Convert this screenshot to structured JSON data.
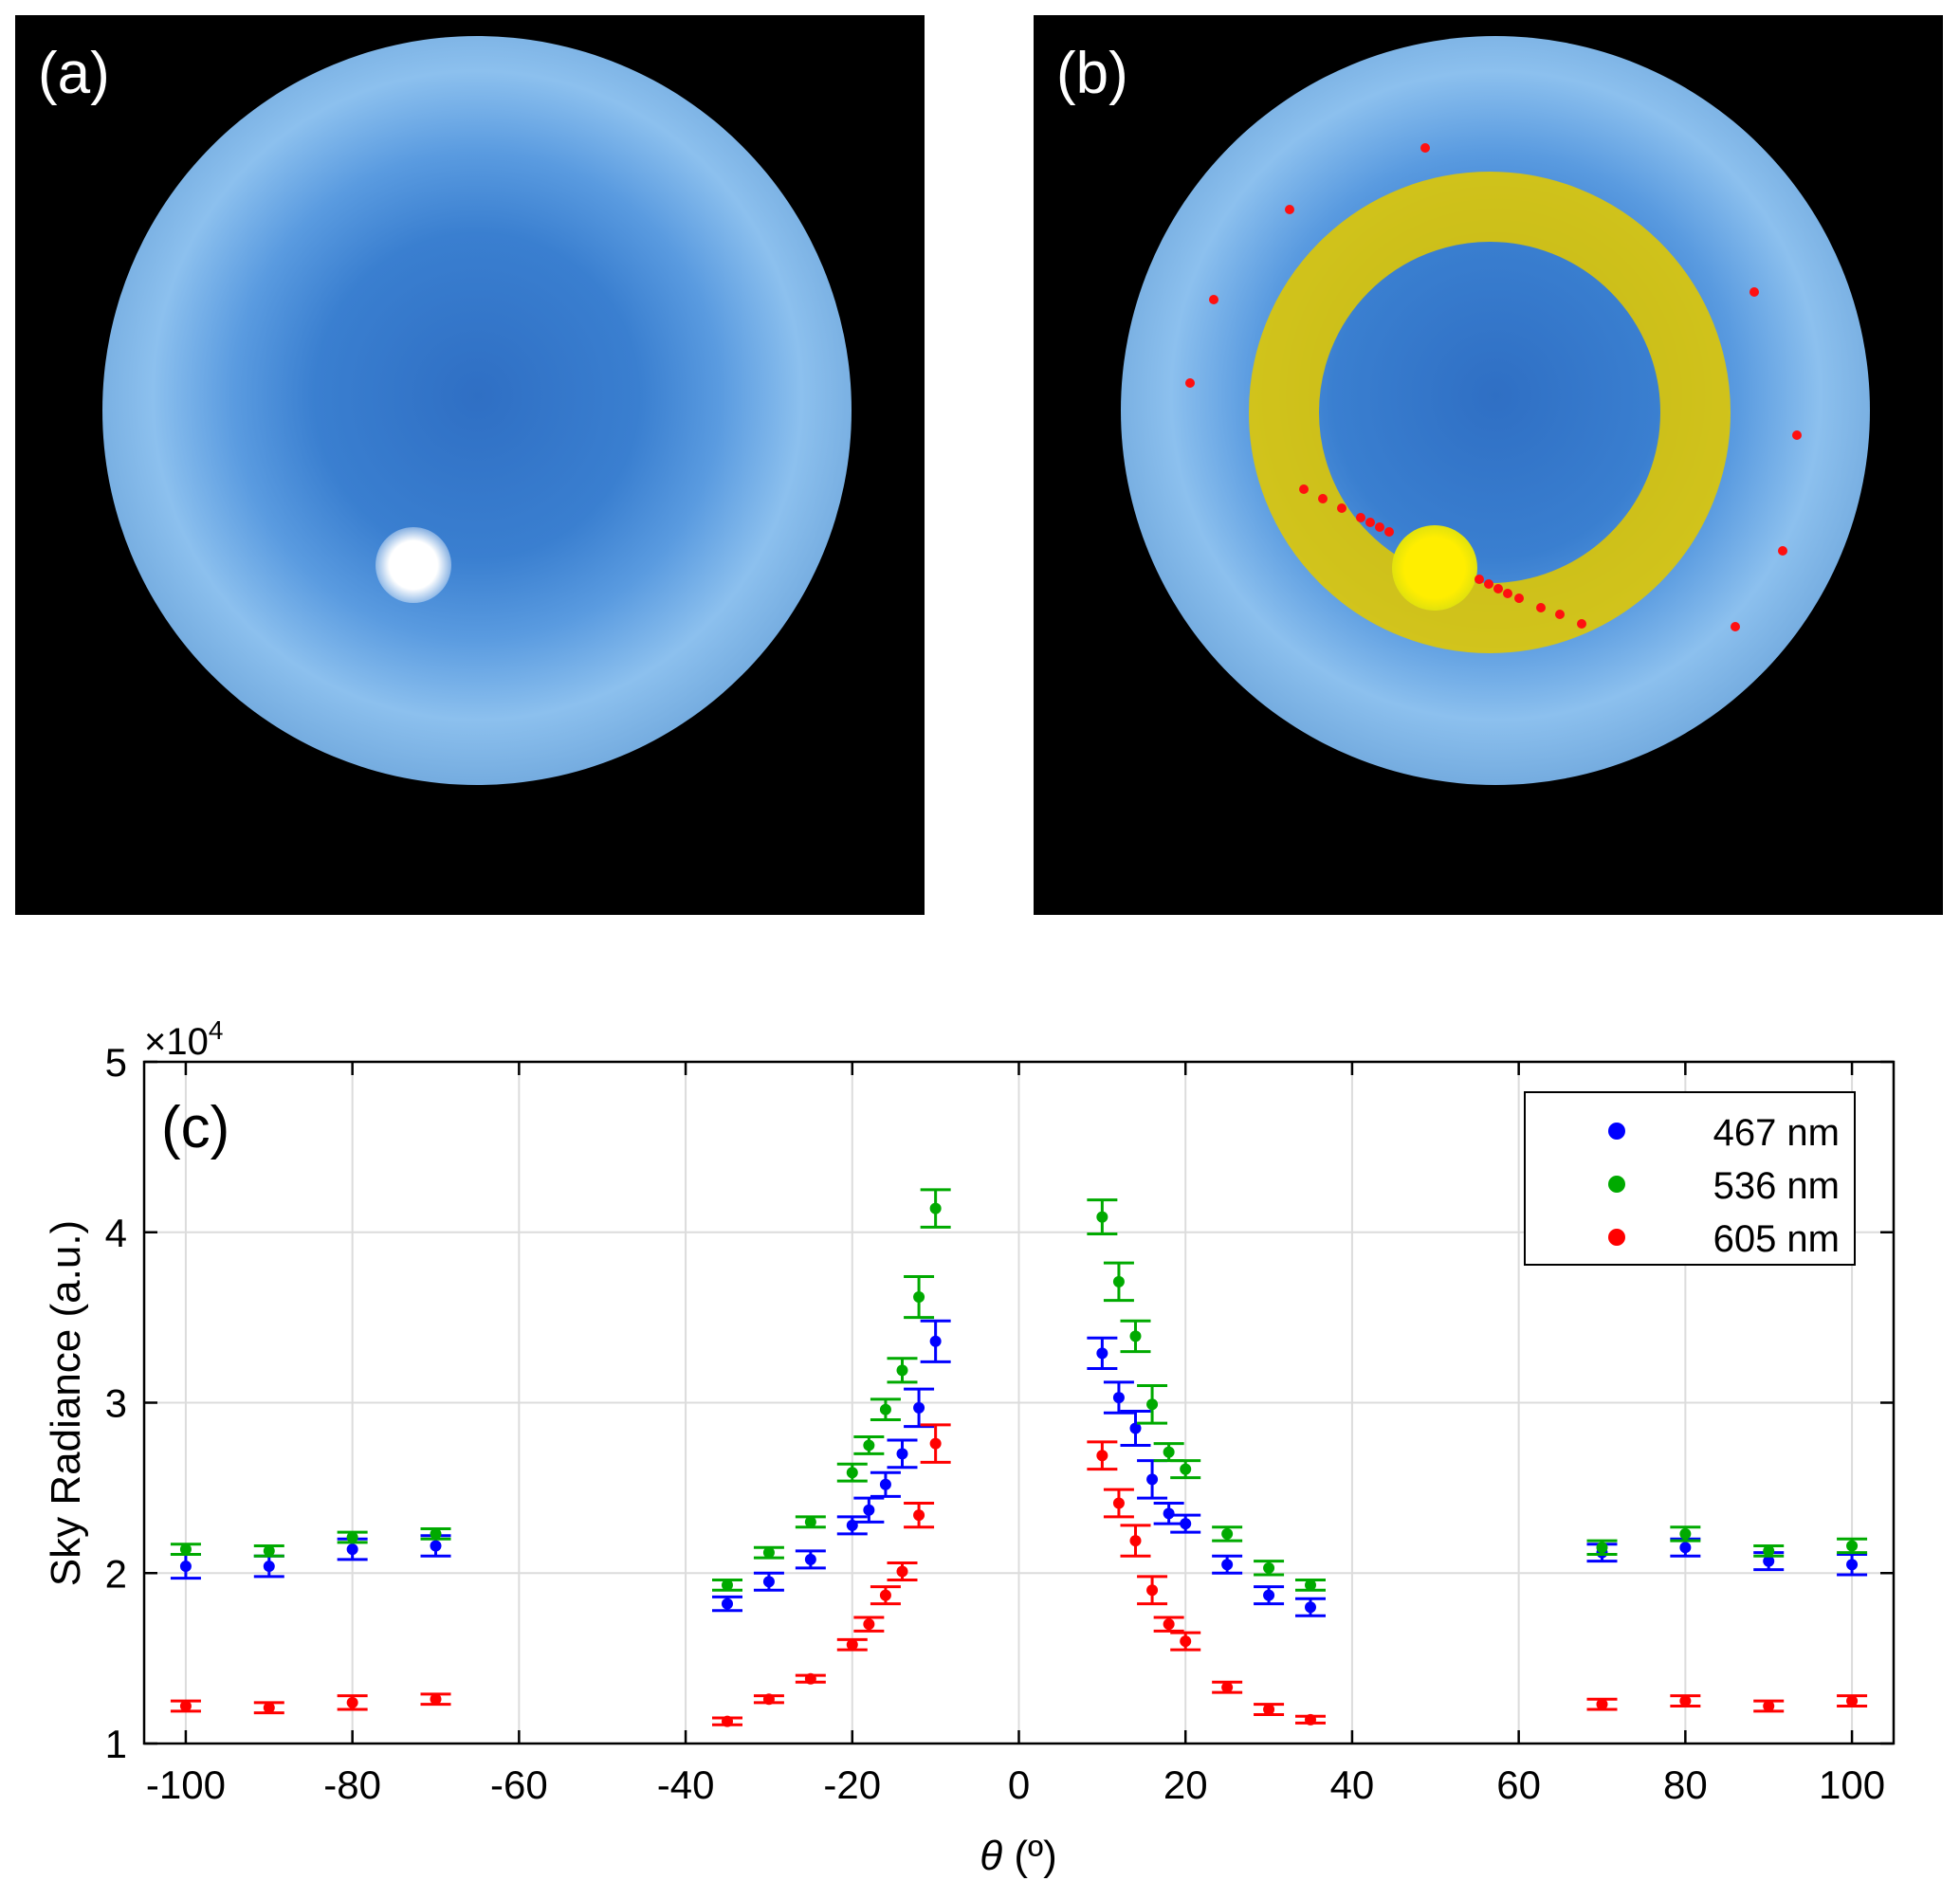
{
  "panels": {
    "a": {
      "label": "(a)"
    },
    "b": {
      "label": "(b)"
    }
  },
  "chart_data": {
    "type": "scatter",
    "panel_label": "(c)",
    "xlabel_symbol": "θ",
    "xlabel_unit": " (º)",
    "ylabel": "Sky Radiance (a.u.)",
    "y_multiplier": "×10",
    "y_multiplier_exp": "4",
    "xlim": [
      -105,
      105
    ],
    "ylim": [
      1,
      5
    ],
    "xticks": [
      -100,
      -80,
      -60,
      -40,
      -20,
      0,
      20,
      40,
      60,
      80,
      100
    ],
    "yticks": [
      1,
      2,
      3,
      4,
      5
    ],
    "grid": true,
    "legend_position": "top-right",
    "x": [
      -100,
      -90,
      -80,
      -70,
      -35,
      -30,
      -25,
      -20,
      -18,
      -16,
      -14,
      -12,
      -10,
      10,
      12,
      14,
      16,
      18,
      20,
      25,
      30,
      35,
      70,
      80,
      90,
      100
    ],
    "series": [
      {
        "name": "467 nm",
        "color": "#0000ff",
        "values": [
          2.04,
          2.04,
          2.14,
          2.16,
          1.82,
          1.95,
          2.08,
          2.28,
          2.37,
          2.52,
          2.7,
          2.97,
          3.36,
          3.29,
          3.03,
          2.85,
          2.55,
          2.35,
          2.29,
          2.05,
          1.87,
          1.8,
          2.12,
          2.15,
          2.07,
          2.05
        ],
        "errors": [
          0.07,
          0.06,
          0.06,
          0.06,
          0.04,
          0.05,
          0.05,
          0.05,
          0.07,
          0.07,
          0.08,
          0.11,
          0.12,
          0.09,
          0.09,
          0.1,
          0.11,
          0.06,
          0.05,
          0.05,
          0.05,
          0.05,
          0.05,
          0.05,
          0.05,
          0.06
        ]
      },
      {
        "name": "536 nm",
        "color": "#00aa00",
        "values": [
          2.14,
          2.13,
          2.21,
          2.23,
          1.93,
          2.12,
          2.3,
          2.59,
          2.75,
          2.96,
          3.19,
          3.62,
          4.14,
          4.09,
          3.71,
          3.39,
          2.99,
          2.71,
          2.61,
          2.23,
          2.03,
          1.93,
          2.15,
          2.23,
          2.13,
          2.16
        ],
        "errors": [
          0.03,
          0.03,
          0.03,
          0.03,
          0.03,
          0.03,
          0.03,
          0.05,
          0.05,
          0.06,
          0.07,
          0.12,
          0.11,
          0.1,
          0.11,
          0.09,
          0.11,
          0.05,
          0.05,
          0.04,
          0.04,
          0.03,
          0.04,
          0.04,
          0.03,
          0.04
        ]
      },
      {
        "name": "605 nm",
        "color": "#ff0000",
        "values": [
          1.22,
          1.21,
          1.24,
          1.26,
          1.13,
          1.26,
          1.38,
          1.58,
          1.7,
          1.87,
          2.01,
          2.34,
          2.76,
          2.69,
          2.41,
          2.19,
          1.9,
          1.7,
          1.6,
          1.33,
          1.2,
          1.14,
          1.23,
          1.25,
          1.22,
          1.25
        ],
        "errors": [
          0.03,
          0.03,
          0.04,
          0.03,
          0.02,
          0.02,
          0.02,
          0.03,
          0.04,
          0.05,
          0.05,
          0.07,
          0.11,
          0.08,
          0.08,
          0.09,
          0.08,
          0.04,
          0.05,
          0.03,
          0.03,
          0.02,
          0.03,
          0.03,
          0.03,
          0.03
        ]
      }
    ]
  }
}
